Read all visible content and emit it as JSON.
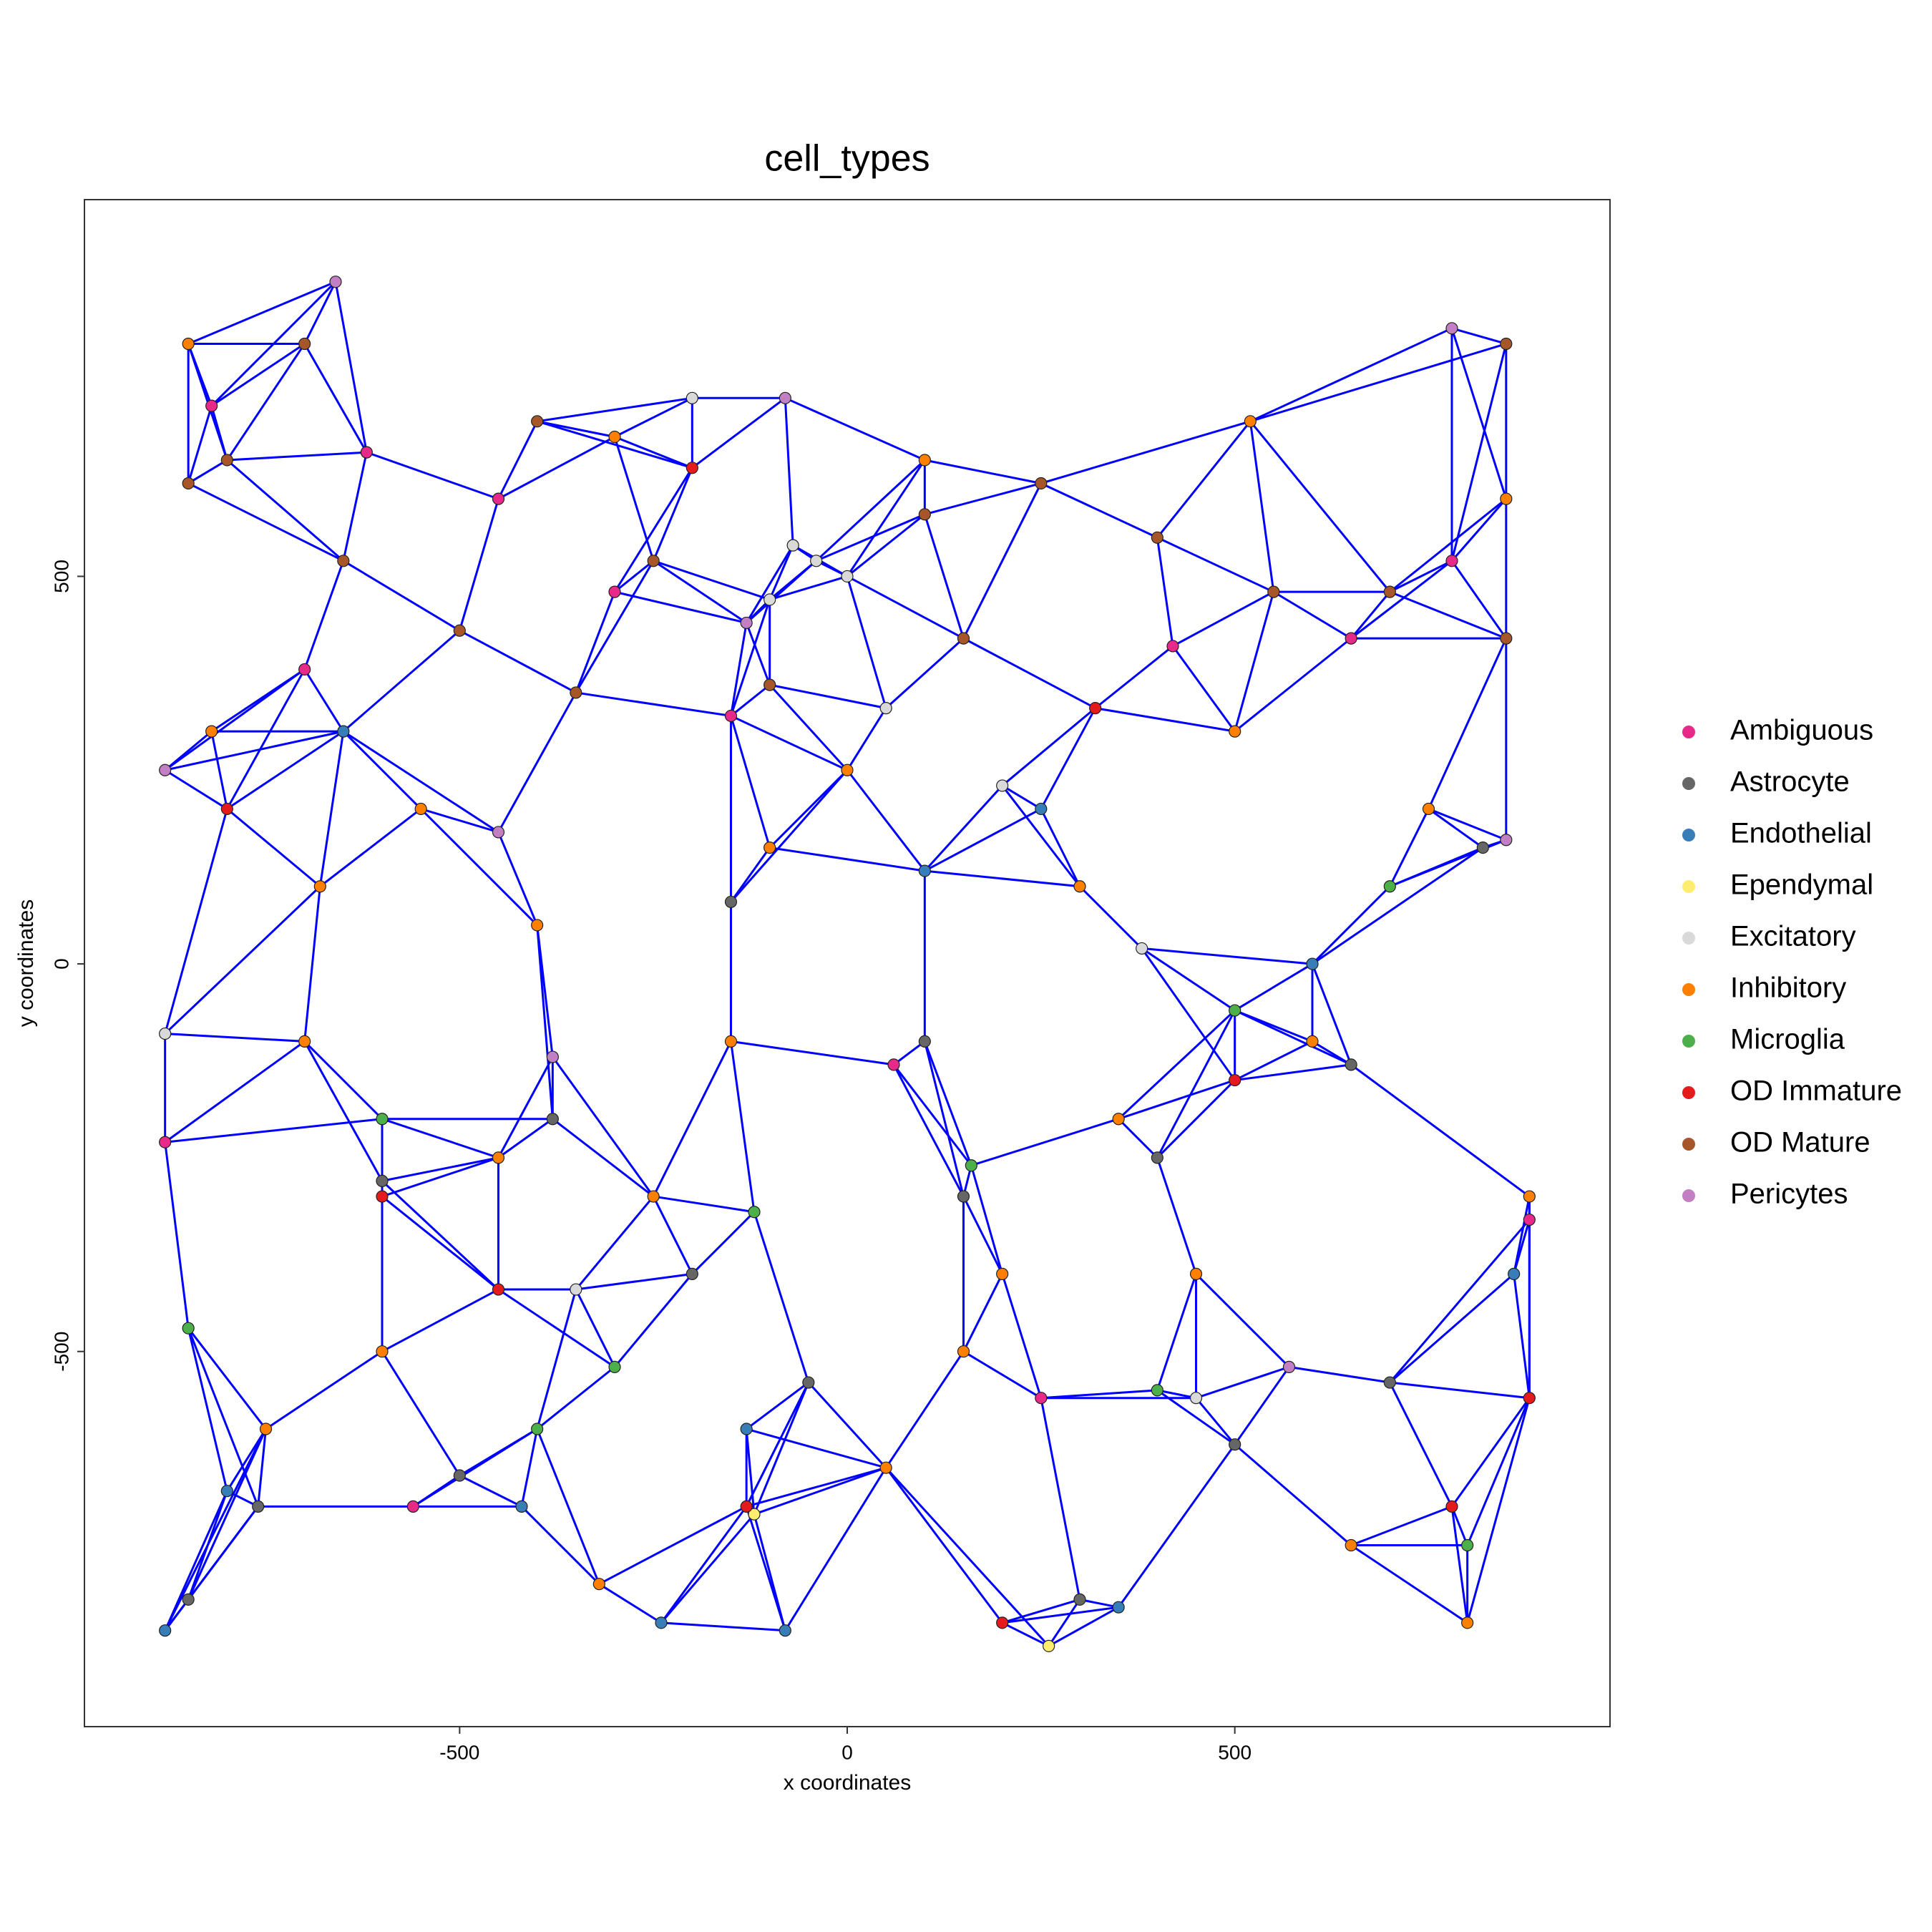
{
  "chart_data": {
    "type": "network-scatter",
    "title": "cell_types",
    "x_label": "x coordinates",
    "y_label": "y coordinates",
    "xlim": [
      -984,
      984
    ],
    "ylim": [
      -984,
      986
    ],
    "xticks": [
      -500,
      0,
      500
    ],
    "yticks": [
      -500,
      0,
      500
    ],
    "edge_color": "#0000ff",
    "grid": false,
    "legend_position": "right",
    "series": [
      {
        "name": "Ambiguous",
        "color": "#e7298a",
        "x": [
          -820,
          -700,
          -620,
          -450,
          -300,
          -150,
          60,
          250,
          420,
          650,
          780,
          880,
          -880,
          -560
        ],
        "y": [
          720,
          380,
          660,
          600,
          480,
          320,
          -130,
          -560,
          410,
          420,
          520,
          -330,
          -230,
          -700
        ]
      },
      {
        "name": "Astrocyte",
        "color": "#666666",
        "x": [
          -760,
          -500,
          -380,
          -200,
          -50,
          150,
          300,
          500,
          650,
          820,
          -850,
          -150,
          400,
          700,
          -600,
          100
        ],
        "y": [
          -700,
          -660,
          -200,
          -400,
          -540,
          -300,
          -820,
          -620,
          -130,
          150,
          -820,
          80,
          -250,
          -540,
          -280,
          -100
        ]
      },
      {
        "name": "Endothelial",
        "color": "#377eb8",
        "x": [
          -880,
          -650,
          -420,
          -240,
          -80,
          100,
          350,
          600,
          860,
          -130,
          -800,
          250
        ],
        "y": [
          -860,
          300,
          -700,
          -850,
          -860,
          120,
          -830,
          0,
          -400,
          -600,
          -680,
          200
        ]
      },
      {
        "name": "Ependymal",
        "color": "#ffed6f",
        "x": [
          -120,
          260
        ],
        "y": [
          -710,
          -880
        ]
      },
      {
        "name": "Excitatory",
        "color": "#d9d9d9",
        "x": [
          -70,
          -40,
          0,
          -100,
          50,
          200,
          380,
          -880,
          -350,
          450,
          -200
        ],
        "y": [
          540,
          520,
          500,
          470,
          330,
          230,
          20,
          -90,
          -420,
          -560,
          730
        ]
      },
      {
        "name": "Inhibitory",
        "color": "#ff7f00",
        "x": [
          -850,
          -700,
          -550,
          -400,
          -250,
          -100,
          50,
          200,
          350,
          500,
          650,
          800,
          -820,
          -600,
          -300,
          0,
          300,
          600,
          850,
          -750,
          -450,
          -150,
          150,
          450,
          750,
          -680,
          -320,
          100,
          520,
          880
        ],
        "y": [
          800,
          -100,
          200,
          50,
          -300,
          150,
          -650,
          -400,
          -200,
          300,
          -750,
          -850,
          300,
          -500,
          680,
          250,
          100,
          -100,
          600,
          -600,
          -250,
          -100,
          -500,
          -400,
          200,
          100,
          -800,
          650,
          700,
          -300
        ]
      },
      {
        "name": "Microglia",
        "color": "#4daf4a",
        "x": [
          -850,
          -600,
          -300,
          -120,
          160,
          400,
          700,
          -400,
          500,
          800
        ],
        "y": [
          -470,
          -200,
          -520,
          -320,
          -260,
          -550,
          100,
          -600,
          -60,
          -750
        ]
      },
      {
        "name": "OD Immature",
        "color": "#e41a1c",
        "x": [
          -800,
          -450,
          -200,
          -130,
          200,
          500,
          780,
          -600,
          320,
          880
        ],
        "y": [
          200,
          -420,
          640,
          -700,
          -850,
          -150,
          -700,
          -300,
          330,
          -560
        ]
      },
      {
        "name": "OD Mature",
        "color": "#a65628",
        "x": [
          -800,
          -650,
          -500,
          -400,
          -250,
          -100,
          100,
          250,
          400,
          550,
          700,
          850,
          -700,
          -350,
          150,
          850,
          -850
        ],
        "y": [
          650,
          520,
          430,
          700,
          520,
          360,
          580,
          620,
          550,
          480,
          480,
          420,
          800,
          350,
          420,
          800,
          620
        ]
      },
      {
        "name": "Pericytes",
        "color": "#c27fc4",
        "x": [
          -660,
          -130,
          -80,
          -880,
          -450,
          780,
          850,
          570,
          -380
        ],
        "y": [
          880,
          440,
          730,
          250,
          170,
          820,
          160,
          -520,
          -120
        ]
      }
    ]
  }
}
